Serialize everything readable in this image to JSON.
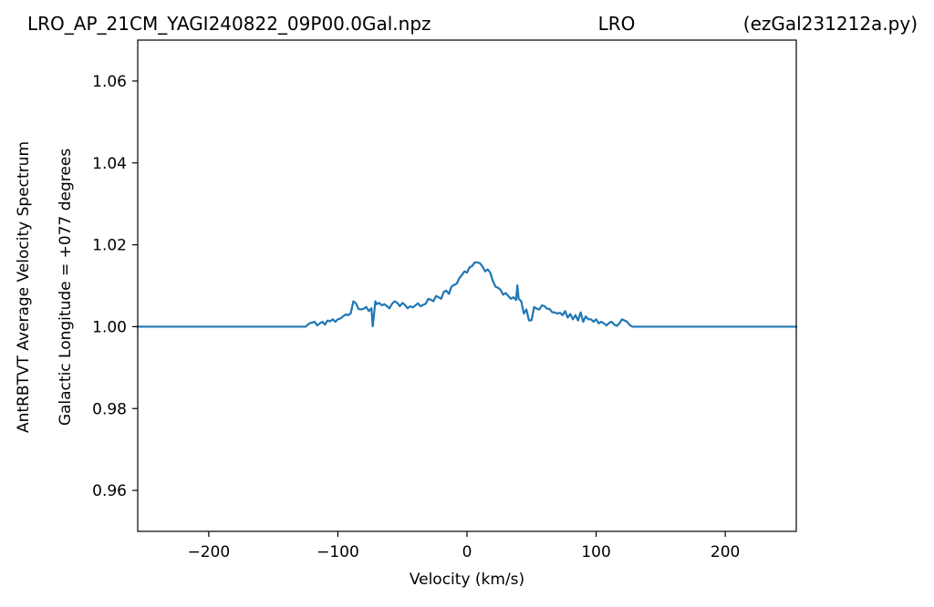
{
  "header": {
    "title_left": "LRO_AP_21CM_YAGI240822_09P00.0Gal.npz",
    "title_center": "LRO",
    "title_right": "(ezGal231212a.py)"
  },
  "chart_data": {
    "type": "line",
    "title": "LRO_AP_21CM_YAGI240822_09P00.0Gal.npz LRO (ezGal231212a.py)",
    "xlabel": "Velocity (km/s)",
    "ylabel": [
      "AntRBTVT Average Velocity Spectrum",
      "Galactic Longitude = +077 degrees"
    ],
    "xlim": [
      -255,
      255
    ],
    "ylim": [
      0.95,
      1.07
    ],
    "x_ticks": [
      -200,
      -100,
      0,
      100,
      200
    ],
    "x_tick_labels": [
      "−200",
      "−100",
      "0",
      "100",
      "200"
    ],
    "y_ticks": [
      0.96,
      0.98,
      1.0,
      1.02,
      1.04,
      1.06
    ],
    "y_tick_labels": [
      "0.96",
      "0.98",
      "1.00",
      "1.02",
      "1.04",
      "1.06"
    ],
    "grid": false,
    "series": [
      {
        "color": "#1f77b4",
        "x": [
          -255,
          -125,
          -122,
          -120,
          -118,
          -116,
          -114,
          -112,
          -110,
          -108,
          -106,
          -104,
          -102,
          -100,
          -98,
          -96,
          -94,
          -92,
          -90,
          -88,
          -86,
          -84,
          -82,
          -80,
          -78,
          -76,
          -74,
          -73,
          -72,
          -71,
          -70,
          -68,
          -66,
          -64,
          -62,
          -60,
          -58,
          -56,
          -54,
          -52,
          -50,
          -48,
          -46,
          -44,
          -42,
          -40,
          -38,
          -36,
          -34,
          -32,
          -30,
          -28,
          -26,
          -24,
          -22,
          -20,
          -18,
          -16,
          -14,
          -12,
          -10,
          -8,
          -6,
          -4,
          -2,
          0,
          2,
          4,
          6,
          8,
          10,
          12,
          14,
          16,
          18,
          20,
          22,
          24,
          26,
          28,
          30,
          32,
          34,
          36,
          38,
          39,
          40,
          42,
          44,
          46,
          48,
          50,
          52,
          54,
          56,
          58,
          60,
          62,
          64,
          66,
          68,
          70,
          72,
          74,
          76,
          78,
          80,
          82,
          84,
          86,
          88,
          90,
          92,
          94,
          96,
          98,
          100,
          102,
          104,
          106,
          108,
          110,
          112,
          114,
          116,
          118,
          120,
          122,
          124,
          126,
          128,
          130,
          255
        ],
        "y": [
          1.0,
          1.0,
          1.0008,
          1.001,
          1.0012,
          1.0003,
          1.0008,
          1.0012,
          1.0005,
          1.0015,
          1.0013,
          1.0018,
          1.0012,
          1.0018,
          1.002,
          1.0025,
          1.003,
          1.0028,
          1.0033,
          1.0062,
          1.0057,
          1.0043,
          1.0042,
          1.0044,
          1.0048,
          1.0038,
          1.0045,
          1.0001,
          1.003,
          1.0062,
          1.0055,
          1.0058,
          1.0052,
          1.0055,
          1.005,
          1.0045,
          1.0056,
          1.0062,
          1.0058,
          1.005,
          1.0058,
          1.0053,
          1.0045,
          1.005,
          1.0047,
          1.0052,
          1.0057,
          1.005,
          1.0053,
          1.0056,
          1.0068,
          1.0066,
          1.0062,
          1.0075,
          1.0072,
          1.0068,
          1.0085,
          1.0088,
          1.008,
          1.0098,
          1.0102,
          1.0105,
          1.0118,
          1.0126,
          1.0135,
          1.0132,
          1.0145,
          1.0148,
          1.0157,
          1.0157,
          1.0155,
          1.0147,
          1.0135,
          1.014,
          1.0132,
          1.0112,
          1.0098,
          1.0095,
          1.009,
          1.0078,
          1.0082,
          1.0075,
          1.0068,
          1.0072,
          1.0065,
          1.0101,
          1.0068,
          1.0062,
          1.0032,
          1.0042,
          1.0015,
          1.0016,
          1.0048,
          1.0044,
          1.0042,
          1.0052,
          1.005,
          1.0044,
          1.0043,
          1.0035,
          1.0035,
          1.0032,
          1.0034,
          1.0028,
          1.0038,
          1.0022,
          1.0031,
          1.0018,
          1.0028,
          1.0015,
          1.0035,
          1.0012,
          1.0025,
          1.0018,
          1.0018,
          1.0012,
          1.0018,
          1.0008,
          1.0012,
          1.0008,
          1.0003,
          1.0009,
          1.0012,
          1.0005,
          1.0002,
          1.0008,
          1.0018,
          1.0015,
          1.0012,
          1.0004,
          1.0,
          1.0,
          1.0
        ]
      }
    ]
  }
}
